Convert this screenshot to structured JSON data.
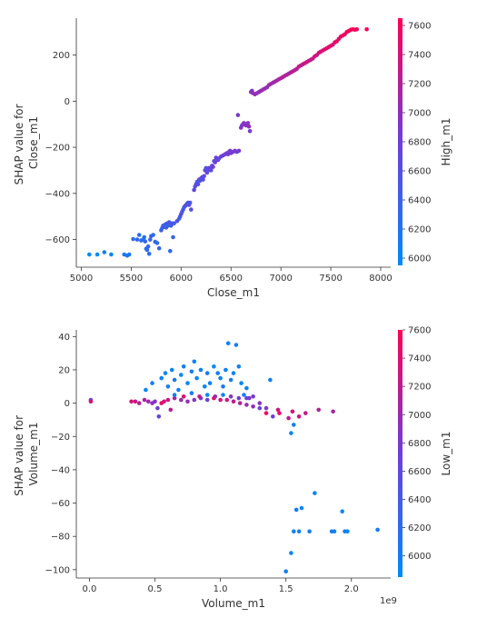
{
  "chart_data": [
    {
      "type": "scatter",
      "xlabel": "Close_m1",
      "ylabel": [
        "SHAP value for",
        "Close_m1"
      ],
      "xlim": [
        4950,
        8100
      ],
      "ylim": [
        -720,
        360
      ],
      "xticks": [
        5000,
        5500,
        6000,
        6500,
        7000,
        7500,
        8000
      ],
      "yticks": [
        -600,
        -400,
        -200,
        0,
        200
      ],
      "xtick_labels": [
        "5000",
        "5500",
        "6000",
        "6500",
        "7000",
        "7500",
        "8000"
      ],
      "ytick_labels": [
        "−600",
        "−400",
        "−200",
        "0",
        "200"
      ],
      "grid": false,
      "colorbar": {
        "label": "High_m1",
        "range": [
          5950,
          7650
        ],
        "ticks": [
          6000,
          6200,
          6400,
          6600,
          6800,
          7000,
          7200,
          7400,
          7600
        ],
        "tick_labels": [
          "6000",
          "6200",
          "6400",
          "6600",
          "6800",
          "7000",
          "7200",
          "7400",
          "7600"
        ],
        "colors": [
          "#008afb",
          "#6e3ed9",
          "#ff0052"
        ]
      },
      "points": [
        [
          5080,
          -665
        ],
        [
          5160,
          -665
        ],
        [
          5230,
          -655
        ],
        [
          5300,
          -665
        ],
        [
          5430,
          -665
        ],
        [
          5460,
          -670
        ],
        [
          5480,
          -665
        ],
        [
          5520,
          -598
        ],
        [
          5560,
          -600
        ],
        [
          5580,
          -580
        ],
        [
          5600,
          -604
        ],
        [
          5620,
          -600
        ],
        [
          5630,
          -590
        ],
        [
          5640,
          -608
        ],
        [
          5650,
          -640
        ],
        [
          5660,
          -645
        ],
        [
          5670,
          -630
        ],
        [
          5680,
          -662
        ],
        [
          5690,
          -600
        ],
        [
          5700,
          -585
        ],
        [
          5720,
          -580
        ],
        [
          5740,
          -610
        ],
        [
          5760,
          -615
        ],
        [
          5780,
          -638
        ],
        [
          5800,
          -560
        ],
        [
          5810,
          -550
        ],
        [
          5820,
          -540
        ],
        [
          5830,
          -545
        ],
        [
          5840,
          -535
        ],
        [
          5850,
          -548
        ],
        [
          5860,
          -530
        ],
        [
          5870,
          -540
        ],
        [
          5880,
          -525
        ],
        [
          5890,
          -650
        ],
        [
          5900,
          -540
        ],
        [
          5910,
          -530
        ],
        [
          5920,
          -590
        ],
        [
          5930,
          -530
        ],
        [
          5960,
          -520
        ],
        [
          5980,
          -510
        ],
        [
          5990,
          -500
        ],
        [
          6000,
          -490
        ],
        [
          6010,
          -480
        ],
        [
          6020,
          -470
        ],
        [
          6030,
          -460
        ],
        [
          6040,
          -455
        ],
        [
          6050,
          -450
        ],
        [
          6060,
          -445
        ],
        [
          6070,
          -440
        ],
        [
          6080,
          -450
        ],
        [
          6090,
          -440
        ],
        [
          6100,
          -470
        ],
        [
          6130,
          -385
        ],
        [
          6140,
          -370
        ],
        [
          6150,
          -360
        ],
        [
          6160,
          -350
        ],
        [
          6170,
          -360
        ],
        [
          6180,
          -340
        ],
        [
          6190,
          -345
        ],
        [
          6200,
          -335
        ],
        [
          6210,
          -330
        ],
        [
          6220,
          -340
        ],
        [
          6230,
          -325
        ],
        [
          6240,
          -300
        ],
        [
          6250,
          -290
        ],
        [
          6260,
          -310
        ],
        [
          6270,
          -300
        ],
        [
          6280,
          -290
        ],
        [
          6290,
          -295
        ],
        [
          6300,
          -300
        ],
        [
          6310,
          -280
        ],
        [
          6320,
          -285
        ],
        [
          6330,
          -260
        ],
        [
          6340,
          -265
        ],
        [
          6350,
          -245
        ],
        [
          6360,
          -250
        ],
        [
          6370,
          -255
        ],
        [
          6380,
          -248
        ],
        [
          6400,
          -240
        ],
        [
          6420,
          -235
        ],
        [
          6440,
          -230
        ],
        [
          6460,
          -225
        ],
        [
          6470,
          -230
        ],
        [
          6480,
          -220
        ],
        [
          6490,
          -215
        ],
        [
          6500,
          -225
        ],
        [
          6520,
          -220
        ],
        [
          6540,
          -215
        ],
        [
          6560,
          -220
        ],
        [
          6580,
          -215
        ],
        [
          6600,
          -115
        ],
        [
          6610,
          -105
        ],
        [
          6620,
          -100
        ],
        [
          6630,
          -95
        ],
        [
          6640,
          -100
        ],
        [
          6650,
          -105
        ],
        [
          6660,
          -100
        ],
        [
          6670,
          -95
        ],
        [
          6680,
          -110
        ],
        [
          6690,
          -130
        ],
        [
          6570,
          -60
        ],
        [
          6700,
          40
        ],
        [
          6710,
          45
        ],
        [
          6720,
          35
        ],
        [
          6740,
          30
        ],
        [
          6760,
          35
        ],
        [
          6780,
          40
        ],
        [
          6800,
          45
        ],
        [
          6820,
          50
        ],
        [
          6840,
          55
        ],
        [
          6860,
          60
        ],
        [
          6880,
          70
        ],
        [
          6900,
          75
        ],
        [
          6920,
          80
        ],
        [
          6940,
          85
        ],
        [
          6960,
          90
        ],
        [
          6980,
          95
        ],
        [
          7000,
          100
        ],
        [
          7020,
          105
        ],
        [
          7040,
          110
        ],
        [
          7060,
          115
        ],
        [
          7080,
          120
        ],
        [
          7100,
          125
        ],
        [
          7120,
          130
        ],
        [
          7140,
          135
        ],
        [
          7160,
          140
        ],
        [
          7180,
          150
        ],
        [
          7200,
          155
        ],
        [
          7220,
          160
        ],
        [
          7240,
          165
        ],
        [
          7260,
          170
        ],
        [
          7280,
          175
        ],
        [
          7300,
          180
        ],
        [
          7320,
          185
        ],
        [
          7340,
          195
        ],
        [
          7360,
          200
        ],
        [
          7380,
          210
        ],
        [
          7400,
          215
        ],
        [
          7420,
          220
        ],
        [
          7440,
          225
        ],
        [
          7460,
          230
        ],
        [
          7480,
          235
        ],
        [
          7500,
          240
        ],
        [
          7520,
          245
        ],
        [
          7540,
          255
        ],
        [
          7560,
          260
        ],
        [
          7580,
          270
        ],
        [
          7600,
          280
        ],
        [
          7620,
          285
        ],
        [
          7640,
          290
        ],
        [
          7660,
          300
        ],
        [
          7680,
          305
        ],
        [
          7700,
          310
        ],
        [
          7720,
          312
        ],
        [
          7740,
          310
        ],
        [
          7760,
          312
        ],
        [
          7860,
          312
        ]
      ]
    },
    {
      "type": "scatter",
      "xlabel": "Volume_m1",
      "x_offset_text": "1e9",
      "ylabel": [
        "SHAP value for",
        "Volume_m1"
      ],
      "xlim": [
        -0.1,
        2.3
      ],
      "ylim": [
        -105,
        44
      ],
      "xticks": [
        0.0,
        0.5,
        1.0,
        1.5,
        2.0
      ],
      "yticks": [
        -100,
        -80,
        -60,
        -40,
        -20,
        0,
        20,
        40
      ],
      "xtick_labels": [
        "0.0",
        "0.5",
        "1.0",
        "1.5",
        "2.0"
      ],
      "ytick_labels": [
        "−100",
        "−80",
        "−60",
        "−40",
        "−20",
        "0",
        "20",
        "40"
      ],
      "grid": false,
      "colorbar": {
        "label": "Low_m1",
        "range": [
          5850,
          7600
        ],
        "ticks": [
          6000,
          6200,
          6400,
          6600,
          6800,
          7000,
          7200,
          7400,
          7600
        ],
        "tick_labels": [
          "6000",
          "6200",
          "6400",
          "6600",
          "6800",
          "7000",
          "7200",
          "7400",
          "7600"
        ],
        "colors": [
          "#008afb",
          "#6e3ed9",
          "#ff0052"
        ]
      },
      "points": [
        [
          0.01,
          2
        ],
        [
          0.01,
          1
        ],
        [
          0.32,
          1
        ],
        [
          0.35,
          1
        ],
        [
          0.38,
          0
        ],
        [
          0.42,
          2
        ],
        [
          0.45,
          1
        ],
        [
          0.48,
          0
        ],
        [
          0.5,
          1
        ],
        [
          0.52,
          -3
        ],
        [
          0.53,
          -8
        ],
        [
          0.55,
          0
        ],
        [
          0.57,
          1
        ],
        [
          0.6,
          2
        ],
        [
          0.62,
          -4
        ],
        [
          0.65,
          3
        ],
        [
          0.7,
          2
        ],
        [
          0.75,
          1
        ],
        [
          0.8,
          2
        ],
        [
          0.85,
          3
        ],
        [
          0.9,
          2
        ],
        [
          0.95,
          3
        ],
        [
          1.0,
          2
        ],
        [
          1.05,
          2
        ],
        [
          1.1,
          1
        ],
        [
          1.15,
          0
        ],
        [
          1.2,
          -1
        ],
        [
          1.25,
          -2
        ],
        [
          1.3,
          0
        ],
        [
          1.35,
          -3
        ],
        [
          1.4,
          -8
        ],
        [
          1.45,
          -6
        ],
        [
          1.55,
          -5
        ],
        [
          1.6,
          -8
        ],
        [
          1.65,
          -6
        ],
        [
          1.75,
          -4
        ],
        [
          1.86,
          -5
        ],
        [
          0.43,
          8
        ],
        [
          0.48,
          12
        ],
        [
          0.55,
          15
        ],
        [
          0.58,
          18
        ],
        [
          0.6,
          10
        ],
        [
          0.63,
          20
        ],
        [
          0.65,
          14
        ],
        [
          0.68,
          8
        ],
        [
          0.7,
          17
        ],
        [
          0.72,
          22
        ],
        [
          0.75,
          12
        ],
        [
          0.78,
          19
        ],
        [
          0.8,
          25
        ],
        [
          0.82,
          15
        ],
        [
          0.85,
          20
        ],
        [
          0.88,
          10
        ],
        [
          0.9,
          18
        ],
        [
          0.92,
          12
        ],
        [
          0.95,
          22
        ],
        [
          0.98,
          18
        ],
        [
          1.0,
          15
        ],
        [
          1.02,
          10
        ],
        [
          1.04,
          20
        ],
        [
          1.06,
          36
        ],
        [
          1.08,
          14
        ],
        [
          1.1,
          18
        ],
        [
          1.12,
          35
        ],
        [
          1.14,
          22
        ],
        [
          1.16,
          12
        ],
        [
          1.18,
          5
        ],
        [
          1.2,
          9
        ],
        [
          1.22,
          3
        ],
        [
          1.25,
          4
        ],
        [
          1.3,
          -3
        ],
        [
          1.35,
          -6
        ],
        [
          1.38,
          14
        ],
        [
          1.44,
          -4
        ],
        [
          1.52,
          -9
        ],
        [
          1.54,
          -18
        ],
        [
          1.56,
          -13
        ],
        [
          1.56,
          -77
        ],
        [
          1.58,
          -64
        ],
        [
          1.6,
          -77
        ],
        [
          1.62,
          -63
        ],
        [
          1.68,
          -77
        ],
        [
          1.72,
          -54
        ],
        [
          1.85,
          -77
        ],
        [
          1.87,
          -77
        ],
        [
          1.93,
          -65
        ],
        [
          1.95,
          -77
        ],
        [
          1.97,
          -77
        ],
        [
          2.2,
          -76
        ],
        [
          1.5,
          -101
        ],
        [
          1.54,
          -90
        ],
        [
          0.65,
          5
        ],
        [
          0.72,
          4
        ],
        [
          0.78,
          6
        ],
        [
          0.84,
          4
        ],
        [
          0.9,
          5
        ],
        [
          0.96,
          4
        ],
        [
          1.02,
          5
        ],
        [
          1.08,
          4
        ],
        [
          1.14,
          3
        ],
        [
          1.2,
          3
        ]
      ]
    }
  ]
}
